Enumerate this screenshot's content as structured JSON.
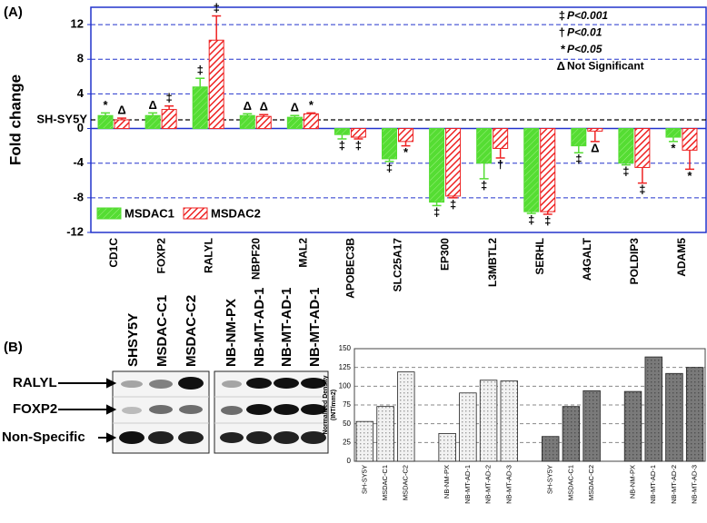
{
  "panel_labels": [
    "(A)",
    "(B)"
  ],
  "chart_data": [
    {
      "type": "bar",
      "ylabel": "Fold change",
      "categories": [
        "CD1C",
        "FOXP2",
        "RALYL",
        "NBPF20",
        "MAL2",
        "APOBEC3B",
        "SLC25A17",
        "EP300",
        "L3MBTL2",
        "SERHL",
        "A4GALT",
        "POLDIP3",
        "ADAM5"
      ],
      "series": [
        {
          "name": "MSDAC1",
          "color": "#55dd33",
          "values": [
            1.5,
            1.5,
            4.8,
            1.5,
            1.3,
            -0.7,
            -3.5,
            -8.5,
            -4,
            -9.6,
            -2,
            -4,
            -1
          ],
          "errors": [
            0.3,
            0.3,
            1,
            0.2,
            0.2,
            0.5,
            0.3,
            0.4,
            1.8,
            0.2,
            0.8,
            0.2,
            0.5
          ],
          "significance": [
            "*",
            "Δ",
            "‡",
            "Δ",
            "Δ",
            "‡",
            "‡",
            "‡",
            "‡",
            "‡",
            "‡",
            "‡",
            "*"
          ]
        },
        {
          "name": "MSDAC2",
          "color": "#ee2222",
          "values": [
            1,
            2.2,
            10.2,
            1.4,
            1.7,
            -1,
            -1.5,
            -7.8,
            -2.3,
            -9.6,
            -0.3,
            -4.5,
            -2.5
          ],
          "errors": [
            0.2,
            0.4,
            2.8,
            0.2,
            0.1,
            0.2,
            0.5,
            0.2,
            1.1,
            0.3,
            1.2,
            1.8,
            2.2
          ],
          "significance": [
            "Δ",
            "‡",
            "‡",
            "Δ",
            "*",
            "‡",
            "*",
            "‡",
            "†",
            "‡",
            "Δ",
            "‡",
            "*"
          ]
        }
      ],
      "ylim": [
        -12,
        14
      ],
      "yticks": [
        -12,
        -8,
        -4,
        0,
        4,
        8,
        12
      ],
      "grid": true,
      "reference_line": {
        "value": 1,
        "label": "SH-SY5Y"
      },
      "significance_key": [
        {
          "symbol": "‡",
          "label": "P<0.001"
        },
        {
          "symbol": "†",
          "label": "P<0.01"
        },
        {
          "symbol": "*",
          "label": "P<0.05"
        },
        {
          "symbol": "Δ",
          "label": "Not Significant"
        }
      ],
      "legend": "bottom-left"
    },
    {
      "type": "bar",
      "ylabel": [
        "Normalized Density",
        "(INT/mm2)"
      ],
      "categories": [
        "SH-SY5Y",
        "MSDAC-C1",
        "MSDAC-C2",
        null,
        "NB-NM-PX",
        "NB-MT-AD-1",
        "NB-MT-AD-2",
        "NB-MT-AD-3",
        null,
        "SH-SY5Y",
        "MSDAC-C1",
        "MSDAC-C2",
        null,
        "NB-NM-PX",
        "NB-MT-AD-1",
        "NB-MT-AD-2",
        "NB-MT-AD-3"
      ],
      "values": [
        53,
        73,
        119,
        null,
        37,
        91,
        108,
        107,
        null,
        33,
        73,
        94,
        null,
        93,
        139,
        117,
        125
      ],
      "colors": [
        "#f2f2f2",
        "#f2f2f2",
        "#f2f2f2",
        null,
        "#f2f2f2",
        "#f2f2f2",
        "#f2f2f2",
        "#f2f2f2",
        null,
        "#7a7a7a",
        "#7a7a7a",
        "#7a7a7a",
        null,
        "#7a7a7a",
        "#7a7a7a",
        "#7a7a7a",
        "#7a7a7a"
      ],
      "ylim": [
        0,
        150
      ],
      "yticks": [
        0,
        25,
        50,
        75,
        100,
        125,
        150
      ],
      "grid": true
    }
  ],
  "blot": {
    "lanes_left": [
      "SHSY5Y",
      "MSDAC-C1",
      "MSDAC-C2"
    ],
    "lanes_right": [
      "NB-NM-PX",
      "NB-MT-AD-1",
      "NB-MT-AD-1",
      "NB-MT-AD-1"
    ],
    "rows": [
      "RALYL",
      "FOXP2",
      "Non-Specific"
    ]
  }
}
